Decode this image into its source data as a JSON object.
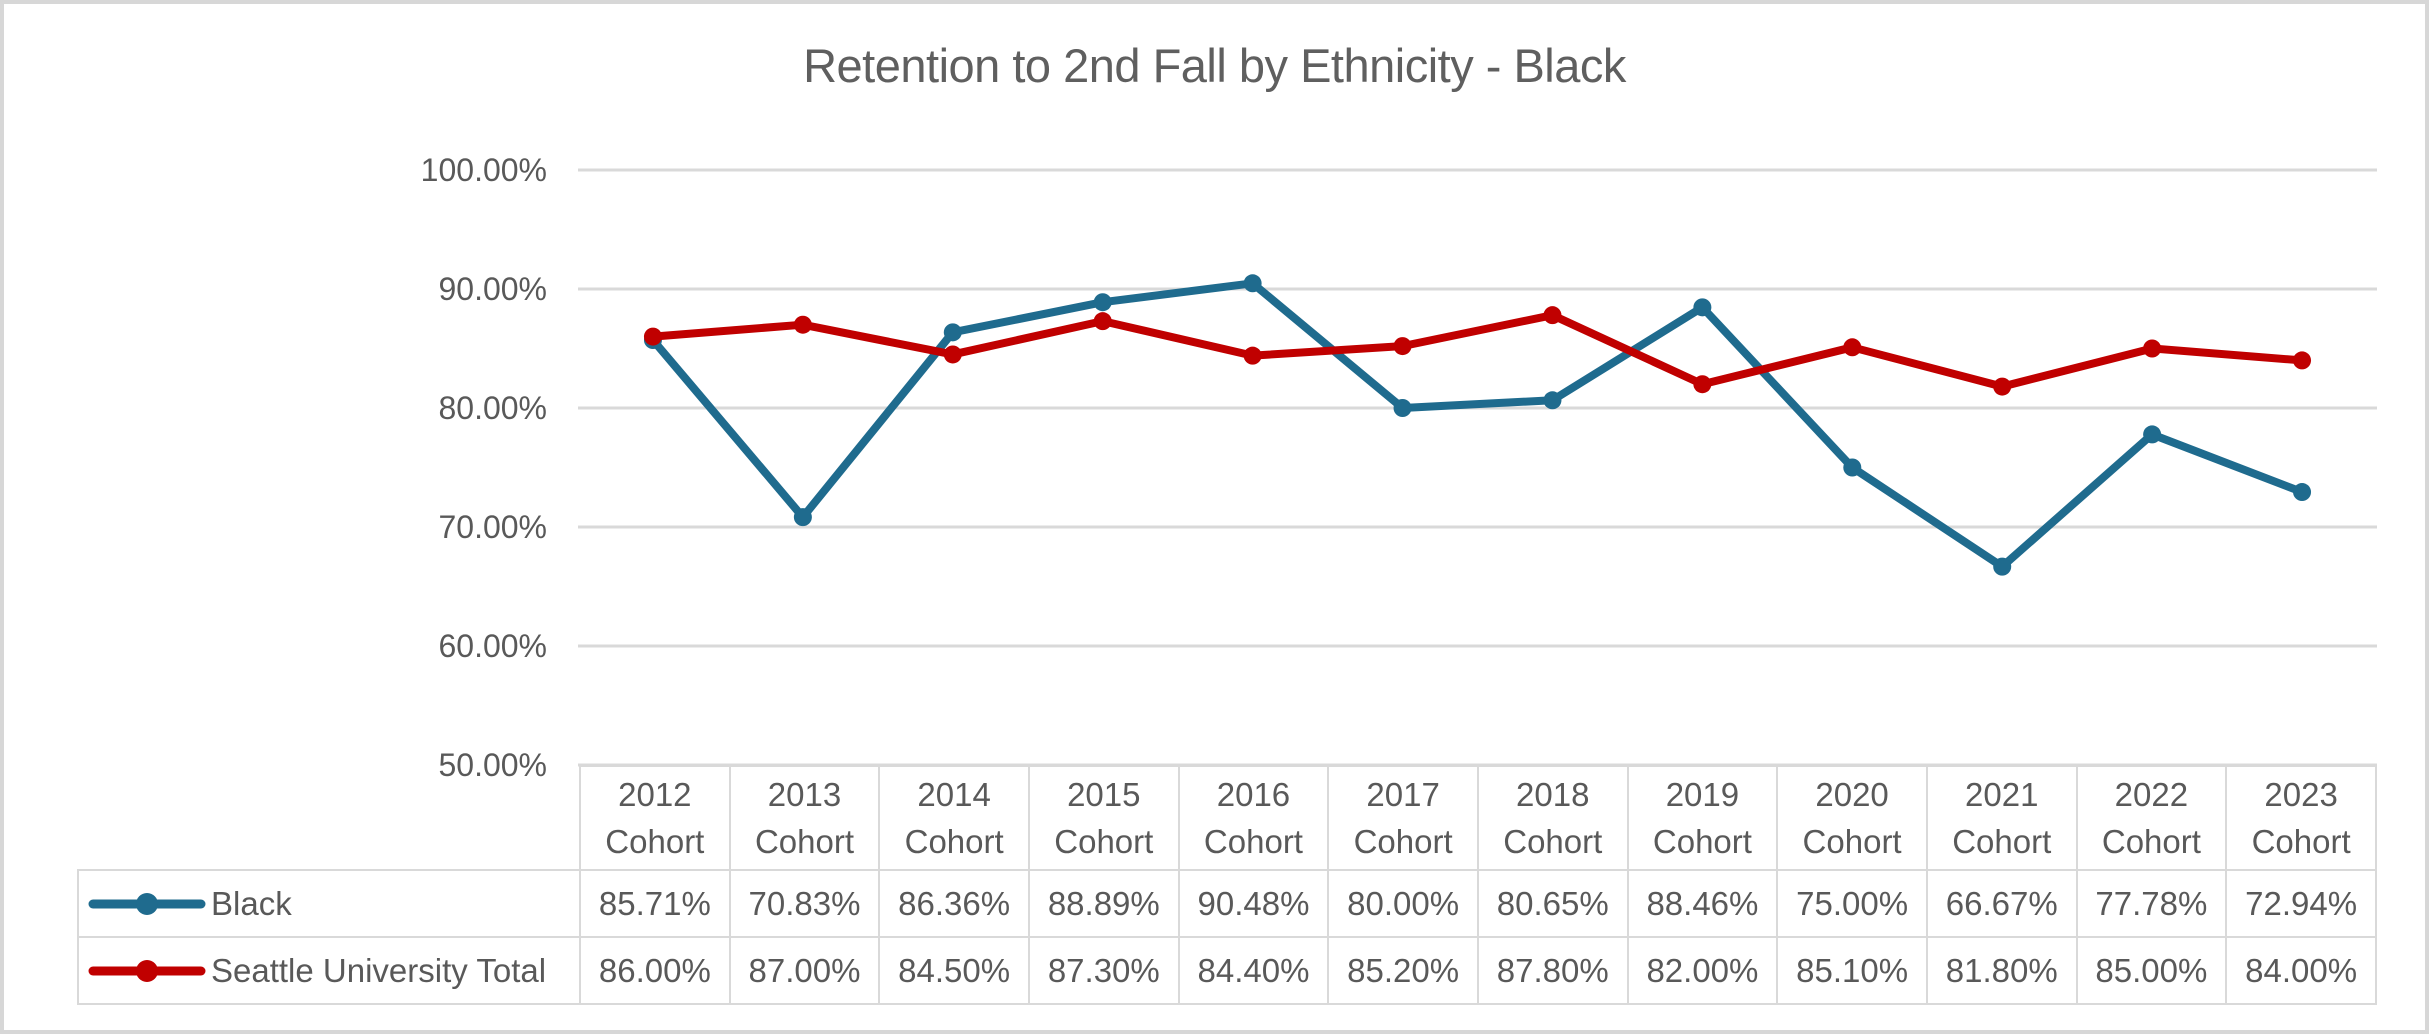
{
  "chart_data": {
    "type": "line",
    "title": "Retention to 2nd Fall by Ethnicity - Black",
    "categories": [
      "2012 Cohort",
      "2013 Cohort",
      "2014 Cohort",
      "2015 Cohort",
      "2016 Cohort",
      "2017 Cohort",
      "2018 Cohort",
      "2019 Cohort",
      "2020 Cohort",
      "2021 Cohort",
      "2022 Cohort",
      "2023 Cohort"
    ],
    "series": [
      {
        "name": "Black",
        "color": "#1f6b8e",
        "values": [
          85.71,
          70.83,
          86.36,
          88.89,
          90.48,
          80.0,
          80.65,
          88.46,
          75.0,
          66.67,
          77.78,
          72.94
        ]
      },
      {
        "name": "Seattle University Total",
        "color": "#c00000",
        "values": [
          86.0,
          87.0,
          84.5,
          87.3,
          84.4,
          85.2,
          87.8,
          82.0,
          85.1,
          81.8,
          85.0,
          84.0
        ]
      }
    ],
    "ylim": [
      50,
      100
    ],
    "y_tick_labels": [
      "100.00%",
      "90.00%",
      "80.00%",
      "70.00%",
      "60.00%",
      "50.00%"
    ],
    "grid": true,
    "legend_position": "data-table-left",
    "value_format": "0.00%"
  },
  "table": {
    "columns": [
      "2012 Cohort",
      "2013 Cohort",
      "2014 Cohort",
      "2015 Cohort",
      "2016 Cohort",
      "2017 Cohort",
      "2018 Cohort",
      "2019 Cohort",
      "2020 Cohort",
      "2021 Cohort",
      "2022 Cohort",
      "2023 Cohort"
    ],
    "rows": [
      {
        "label": "Black",
        "cells": [
          "85.71%",
          "70.83%",
          "86.36%",
          "88.89%",
          "90.48%",
          "80.00%",
          "80.65%",
          "88.46%",
          "75.00%",
          "66.67%",
          "77.78%",
          "72.94%"
        ]
      },
      {
        "label": "Seattle University Total",
        "cells": [
          "86.00%",
          "87.00%",
          "84.50%",
          "87.30%",
          "84.40%",
          "85.20%",
          "87.80%",
          "82.00%",
          "85.10%",
          "81.80%",
          "85.00%",
          "84.00%"
        ]
      }
    ]
  },
  "colors": {
    "text_gray": "#595959",
    "title_gray": "#5f5f5f",
    "gridline": "#d9d9d9",
    "table_border": "#d9d9d9",
    "outer_border": "#d7d7d7",
    "series_black": "#1f6b8e",
    "series_su_total": "#c00000"
  }
}
